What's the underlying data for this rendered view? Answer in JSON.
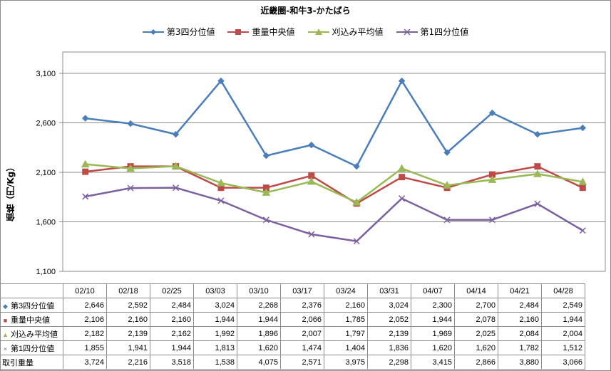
{
  "chart_data": {
    "type": "line",
    "title": "近畿圏-和牛3-かたばら",
    "ylabel": "価格（円/Kg）",
    "xlabel": "",
    "categories": [
      "02/10",
      "02/18",
      "02/25",
      "03/03",
      "03/10",
      "03/17",
      "03/24",
      "03/31",
      "04/07",
      "04/14",
      "04/21",
      "04/28"
    ],
    "ylim": [
      1100,
      3100
    ],
    "yticks": [
      1100,
      1600,
      2100,
      2600,
      3100
    ],
    "ytick_labels": [
      "1,100",
      "1,600",
      "2,100",
      "2,600",
      "3,100"
    ],
    "grid": true,
    "legend_position": "top",
    "series": [
      {
        "name": "第3四分位値",
        "color": "#4a7ebb",
        "marker": "diamond",
        "values": [
          2646,
          2592,
          2484,
          3024,
          2268,
          2376,
          2160,
          3024,
          2300,
          2700,
          2484,
          2549
        ],
        "labels": [
          "2,646",
          "2,592",
          "2,484",
          "3,024",
          "2,268",
          "2,376",
          "2,160",
          "3,024",
          "2,300",
          "2,700",
          "2,484",
          "2,549"
        ]
      },
      {
        "name": "重量中央値",
        "color": "#be4b48",
        "marker": "square",
        "values": [
          2106,
          2160,
          2160,
          1944,
          1944,
          2066,
          1785,
          2052,
          1944,
          2078,
          2160,
          1944
        ],
        "labels": [
          "2,106",
          "2,160",
          "2,160",
          "1,944",
          "1,944",
          "2,066",
          "1,785",
          "2,052",
          "1,944",
          "2,078",
          "2,160",
          "1,944"
        ]
      },
      {
        "name": "刈込み平均値",
        "color": "#98b954",
        "marker": "triangle",
        "values": [
          2182,
          2139,
          2162,
          1992,
          1896,
          2007,
          1797,
          2139,
          1969,
          2025,
          2084,
          2004
        ],
        "labels": [
          "2,182",
          "2,139",
          "2,162",
          "1,992",
          "1,896",
          "2,007",
          "1,797",
          "2,139",
          "1,969",
          "2,025",
          "2,084",
          "2,004"
        ]
      },
      {
        "name": "第1四分位値",
        "color": "#7d60a0",
        "marker": "x",
        "values": [
          1855,
          1941,
          1944,
          1813,
          1620,
          1474,
          1404,
          1836,
          1620,
          1620,
          1782,
          1512
        ],
        "labels": [
          "1,855",
          "1,941",
          "1,944",
          "1,813",
          "1,620",
          "1,474",
          "1,404",
          "1,836",
          "1,620",
          "1,620",
          "1,782",
          "1,512"
        ]
      }
    ],
    "table_extra_row": {
      "name": "取引重量",
      "labels": [
        "3,724",
        "2,216",
        "3,518",
        "1,538",
        "4,075",
        "2,571",
        "3,975",
        "2,298",
        "3,415",
        "2,866",
        "3,880",
        "3,066"
      ]
    }
  }
}
